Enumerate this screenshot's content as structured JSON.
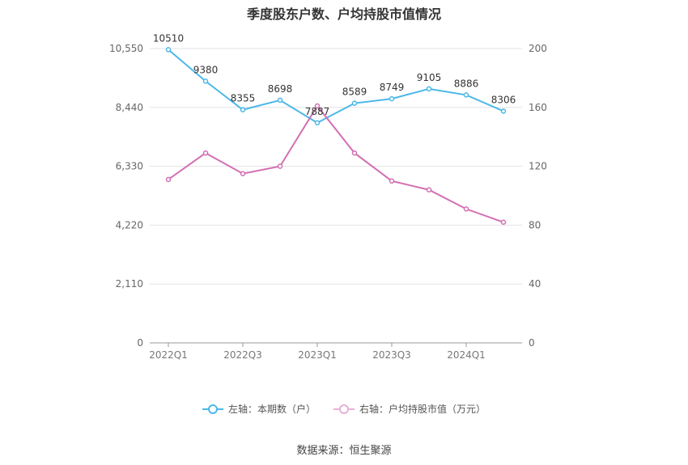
{
  "chart_data": {
    "type": "line",
    "title": "季度股东户数、户均持股市值情况",
    "source": "数据来源：恒生聚源",
    "x": [
      "2022Q1",
      "2022Q2",
      "2022Q3",
      "2022Q4",
      "2023Q1",
      "2023Q2",
      "2023Q3",
      "2023Q4",
      "2024Q1",
      "2024Q2"
    ],
    "x_tick_labels": [
      "2022Q1",
      "2022Q3",
      "2023Q1",
      "2023Q3",
      "2024Q1"
    ],
    "left_axis": {
      "ticks": [
        "0",
        "2,110",
        "4,220",
        "6,330",
        "8,440",
        "10,550"
      ],
      "ylim": [
        0,
        10550
      ]
    },
    "right_axis": {
      "ticks": [
        "0",
        "40",
        "80",
        "120",
        "160",
        "200"
      ],
      "ylim": [
        0,
        200
      ]
    },
    "grid": true,
    "legend_position": "bottom",
    "series": [
      {
        "name": "左轴：本期数（户）",
        "axis": "left",
        "color": "#4cb8e8",
        "values": [
          10510,
          9380,
          8355,
          8698,
          7887,
          8589,
          8749,
          9105,
          8886,
          8306
        ],
        "labels": [
          "10510",
          "9380",
          "8355",
          "8698",
          "7887",
          "8589",
          "8749",
          "9105",
          "8886",
          "8306"
        ]
      },
      {
        "name": "右轴：户均持股市值（万元）",
        "axis": "right",
        "color": "#d36fb3",
        "values": [
          111,
          129,
          115,
          120,
          161,
          129,
          110,
          104,
          91,
          82
        ]
      }
    ]
  }
}
